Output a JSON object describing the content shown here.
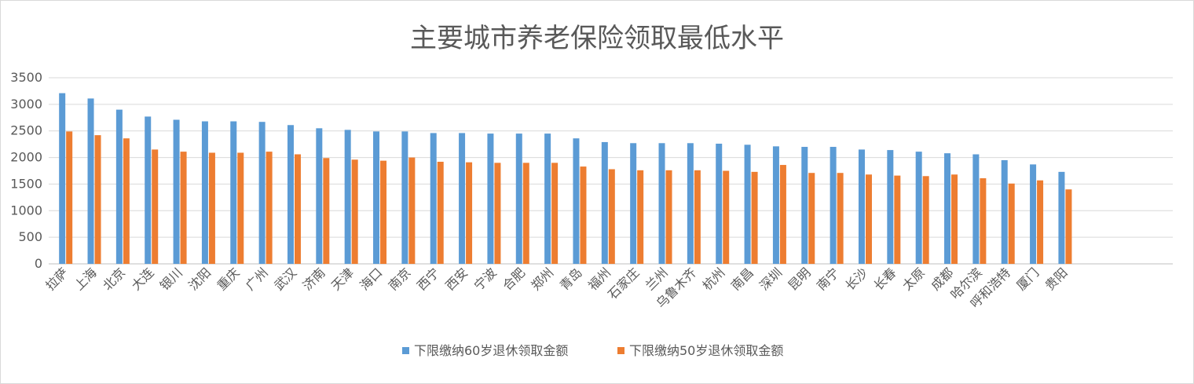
{
  "chart_data": {
    "type": "bar",
    "title": "主要城市养老保险领取最低水平",
    "xlabel": "",
    "ylabel": "",
    "ylim": [
      0,
      3500
    ],
    "yticks": [
      0,
      500,
      1000,
      1500,
      2000,
      2500,
      3000,
      3500
    ],
    "grid": true,
    "legend_position": "bottom",
    "categories": [
      "拉萨",
      "上海",
      "北京",
      "大连",
      "银川",
      "沈阳",
      "重庆",
      "广州",
      "武汉",
      "济南",
      "天津",
      "海口",
      "南京",
      "西宁",
      "西安",
      "宁波",
      "合肥",
      "郑州",
      "青岛",
      "福州",
      "石家庄",
      "兰州",
      "乌鲁木齐",
      "杭州",
      "南昌",
      "深圳",
      "昆明",
      "南宁",
      "长沙",
      "长春",
      "太原",
      "成都",
      "哈尔滨",
      "呼和浩特",
      "厦门",
      "贵阳"
    ],
    "series": [
      {
        "name": "下限缴纳60岁退休领取金额",
        "color": "#5b9bd5",
        "values": [
          3210,
          3110,
          2900,
          2770,
          2710,
          2680,
          2680,
          2670,
          2610,
          2550,
          2520,
          2490,
          2490,
          2460,
          2460,
          2450,
          2450,
          2450,
          2360,
          2290,
          2270,
          2270,
          2270,
          2260,
          2240,
          2210,
          2200,
          2200,
          2150,
          2140,
          2110,
          2080,
          2060,
          1950,
          1870,
          1730
        ]
      },
      {
        "name": "下限缴纳50岁退休领取金额",
        "color": "#ed7d31",
        "values": [
          2490,
          2420,
          2360,
          2150,
          2110,
          2090,
          2090,
          2110,
          2060,
          1990,
          1960,
          1940,
          2000,
          1920,
          1910,
          1900,
          1900,
          1900,
          1830,
          1780,
          1760,
          1760,
          1760,
          1750,
          1730,
          1860,
          1710,
          1710,
          1680,
          1660,
          1650,
          1680,
          1610,
          1510,
          1570,
          1400
        ]
      }
    ]
  }
}
